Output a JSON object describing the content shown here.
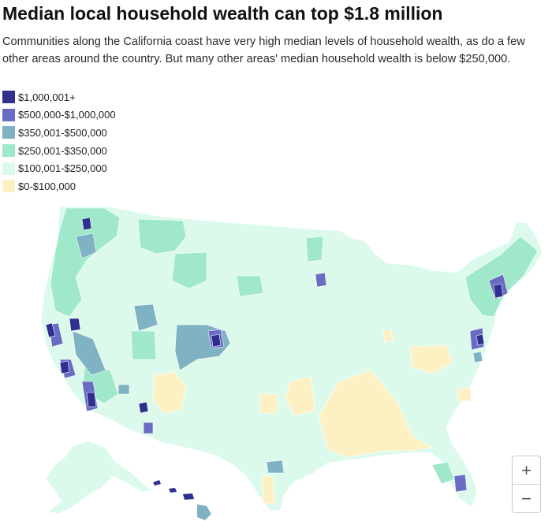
{
  "title": "Median local household wealth can top $1.8 million",
  "subtitle": "Communities along the California coast have very high median levels of household wealth, as do a few other areas around the country. But many other areas' median household wealth is below $250,000.",
  "legend": [
    {
      "label": "$1,000,001+",
      "color": "#2f2f8f"
    },
    {
      "label": "$500,000-$1,000,000",
      "color": "#6a6cc4"
    },
    {
      "label": "$350,001-$500,000",
      "color": "#7fb3c3"
    },
    {
      "label": "$250,001-$350,000",
      "color": "#9fe8ca"
    },
    {
      "label": "$100,001-$250,000",
      "color": "#dcfaec"
    },
    {
      "label": "$0-$100,000",
      "color": "#fdf1c4"
    }
  ],
  "zoom": {
    "in_label": "+",
    "out_label": "−"
  }
}
